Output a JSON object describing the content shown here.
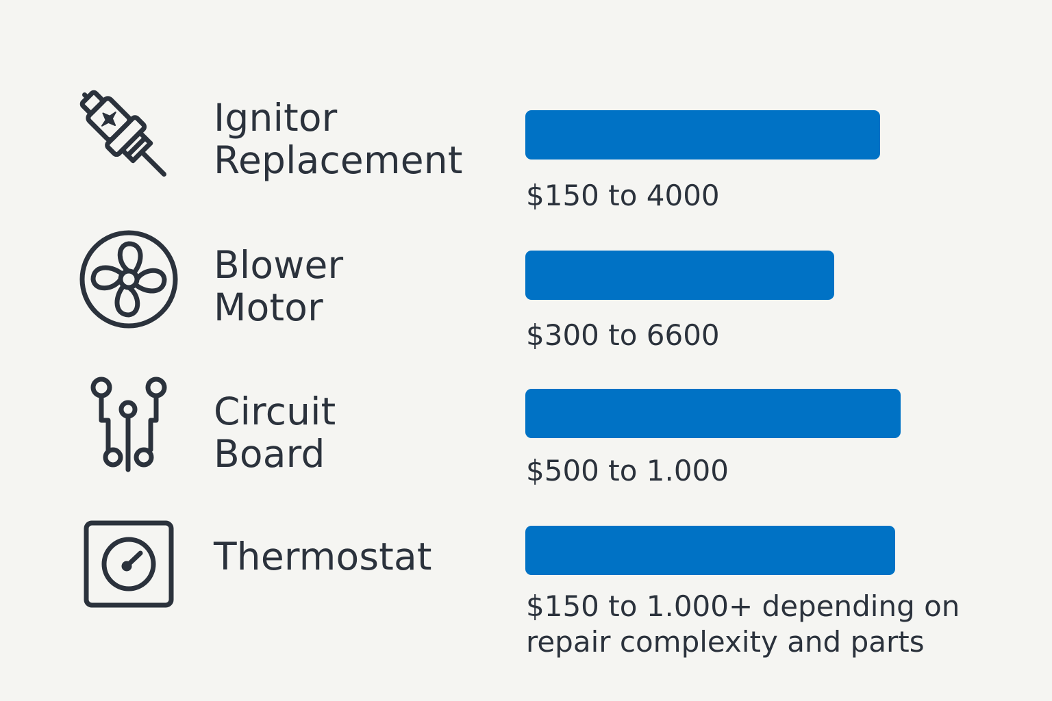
{
  "chart_data": {
    "type": "bar",
    "orientation": "horizontal",
    "accent_color": "#0072c5",
    "text_color": "#2b323c",
    "background_color": "#f5f5f2",
    "items": [
      {
        "icon": "spark-plug-icon",
        "label_lines": [
          "Ignitor",
          "Replacement"
        ],
        "bar_fraction": 0.7,
        "cost_lines": [
          "$150 to 4000"
        ]
      },
      {
        "icon": "fan-icon",
        "label_lines": [
          "Blower",
          "Motor"
        ],
        "bar_fraction": 0.61,
        "cost_lines": [
          "$300 to 6600"
        ]
      },
      {
        "icon": "circuit-board-icon",
        "label_lines": [
          "Circuit",
          "Board"
        ],
        "bar_fraction": 0.74,
        "cost_lines": [
          "$500 to 1.000"
        ]
      },
      {
        "icon": "thermostat-icon",
        "label_lines": [
          "Thermostat"
        ],
        "bar_fraction": 0.73,
        "cost_lines": [
          "$150 to 1.000+ depending on",
          "repair complexity and parts"
        ]
      }
    ]
  }
}
